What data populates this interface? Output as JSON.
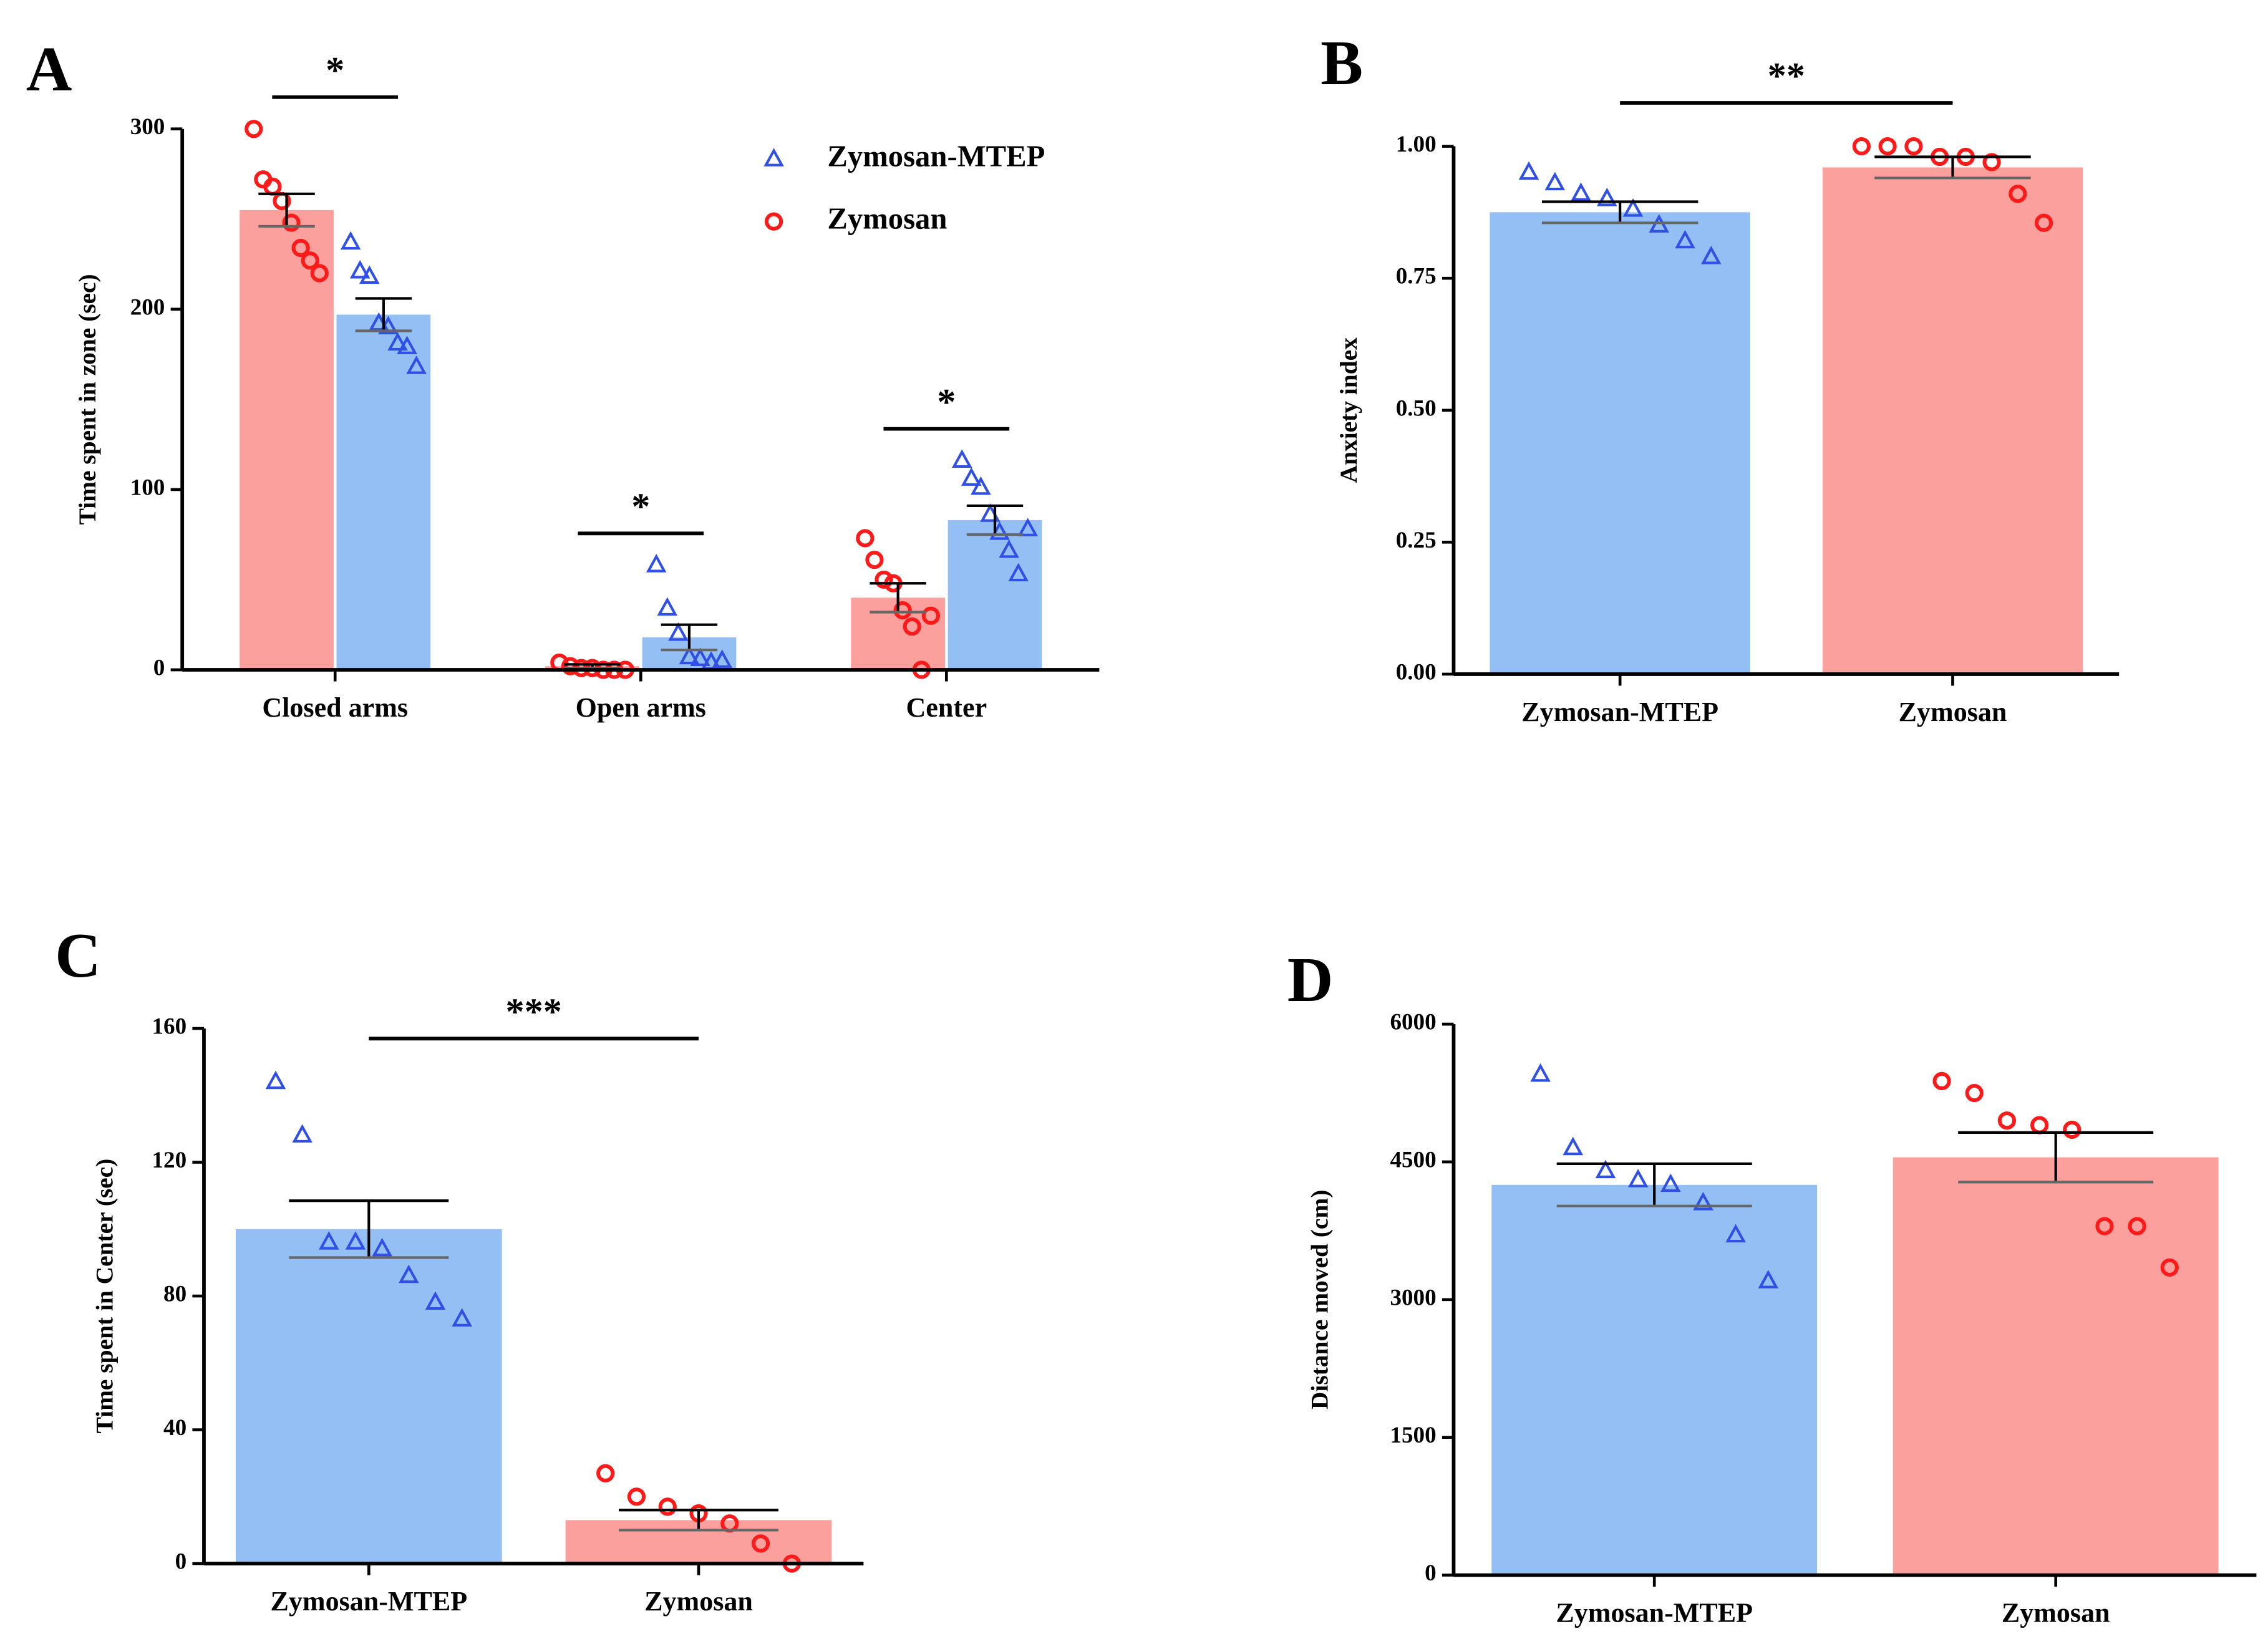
{
  "chart_data": [
    {
      "type": "bar",
      "label": "A",
      "ylabel": "Time spent in zone (sec)",
      "categories": [
        "Closed arms",
        "Open arms",
        "Center"
      ],
      "series": [
        {
          "name": "Zymosan-MTEP",
          "color": "#93bff5",
          "marker_color": "#2f4fe6",
          "marker": "triangle",
          "values": [
            197,
            18,
            83
          ],
          "errors": [
            9,
            7,
            8
          ],
          "points": [
            [
              237,
              221,
              218,
              192,
              190,
              181,
              179,
              168
            ],
            [
              58,
              34,
              20,
              7,
              6,
              4,
              5
            ],
            [
              116,
              106,
              101,
              86,
              76,
              66,
              53,
              78
            ]
          ]
        },
        {
          "name": "Zymosan",
          "color": "#fca09e",
          "marker_color": "#ff1a1a",
          "marker": "circle",
          "values": [
            255,
            2,
            40
          ],
          "errors": [
            9,
            1,
            8
          ],
          "points": [
            [
              300,
              272,
              268,
              260,
              248,
              234,
              227,
              220
            ],
            [
              4,
              2,
              1,
              1,
              0,
              0,
              0
            ],
            [
              73,
              61,
              50,
              48,
              33,
              24,
              0,
              30
            ]
          ]
        }
      ],
      "significance": [
        "*",
        "*",
        "*"
      ],
      "ylim": [
        0,
        300
      ],
      "yticks": [
        0,
        100,
        200,
        300
      ]
    },
    {
      "type": "bar",
      "label": "B",
      "ylabel": "Anxiety index",
      "categories": [
        "Zymosan-MTEP",
        "Zymosan"
      ],
      "values": [
        0.875,
        0.96
      ],
      "errors": [
        0.02,
        0.02
      ],
      "colors": [
        "#93bff5",
        "#fca09e"
      ],
      "marker_colors": [
        "#2f4fe6",
        "#ff1a1a"
      ],
      "markers": [
        "triangle",
        "circle"
      ],
      "points": [
        [
          0.95,
          0.93,
          0.91,
          0.9,
          0.88,
          0.85,
          0.82,
          0.79
        ],
        [
          1.0,
          1.0,
          1.0,
          0.98,
          0.98,
          0.97,
          0.91,
          0.855
        ]
      ],
      "significance": "**",
      "ylim": [
        0,
        1.0
      ],
      "yticks": [
        {
          "value": 0,
          "label": "0.00"
        },
        {
          "value": 0.25,
          "label": "0.25"
        },
        {
          "value": 0.5,
          "label": "0.50"
        },
        {
          "value": 0.75,
          "label": "0.75"
        },
        {
          "value": 1.0,
          "label": "1.00"
        }
      ]
    },
    {
      "type": "bar",
      "label": "C",
      "ylabel": "Time spent in Center (sec)",
      "categories": [
        "Zymosan-MTEP",
        "Zymosan"
      ],
      "values": [
        100,
        13
      ],
      "errors": [
        8.5,
        3
      ],
      "colors": [
        "#93bff5",
        "#fca09e"
      ],
      "marker_colors": [
        "#2f4fe6",
        "#ff1a1a"
      ],
      "markers": [
        "triangle",
        "circle"
      ],
      "points": [
        [
          144,
          128,
          96,
          96,
          94,
          86,
          78,
          73
        ],
        [
          27,
          20,
          17,
          15,
          12,
          6,
          0
        ]
      ],
      "significance": "***",
      "ylim": [
        0,
        160
      ],
      "yticks": [
        0,
        40,
        80,
        120,
        160
      ]
    },
    {
      "type": "bar",
      "label": "D",
      "ylabel": "Distance moved (cm)",
      "categories": [
        "Zymosan-MTEP",
        "Zymosan"
      ],
      "values": [
        4250,
        4550
      ],
      "errors": [
        230,
        270
      ],
      "colors": [
        "#93bff5",
        "#fca09e"
      ],
      "marker_colors": [
        "#2f4fe6",
        "#ff1a1a"
      ],
      "markers": [
        "triangle",
        "circle"
      ],
      "points": [
        [
          5450,
          4650,
          4400,
          4300,
          4250,
          4050,
          3700,
          3200
        ],
        [
          5380,
          5250,
          4950,
          4900,
          4850,
          3800,
          3800,
          3350
        ]
      ],
      "ylim": [
        0,
        6000
      ],
      "yticks": [
        0,
        1500,
        3000,
        4500,
        6000
      ]
    }
  ]
}
